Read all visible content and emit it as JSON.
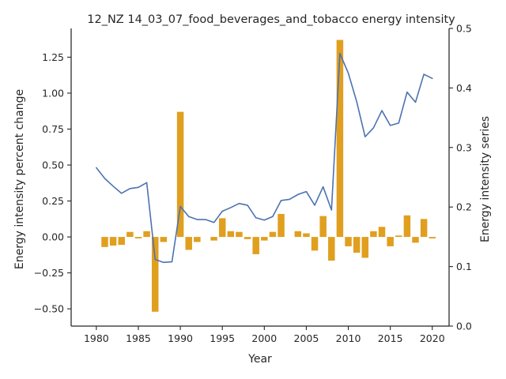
{
  "chart_data": {
    "type": "bar+line",
    "title": "12_NZ 14_03_07_food_beverages_and_tobacco energy intensity",
    "xlabel": "Year",
    "ylabel_left": "Energy intensity percent change",
    "ylabel_right": "Energy intensity series",
    "xlim": [
      1977,
      2022
    ],
    "ylim_left": [
      -0.62,
      1.45
    ],
    "ylim_right": [
      0.0,
      0.5
    ],
    "x_ticks": [
      1980,
      1985,
      1990,
      1995,
      2000,
      2005,
      2010,
      2015,
      2020
    ],
    "y_ticks_left": [
      -0.5,
      -0.25,
      0.0,
      0.25,
      0.5,
      0.75,
      1.0,
      1.25
    ],
    "y_ticks_left_labels": [
      "−0.50",
      "−0.25",
      "0.00",
      "0.25",
      "0.50",
      "0.75",
      "1.00",
      "1.25"
    ],
    "y_ticks_right": [
      0.0,
      0.1,
      0.2,
      0.3,
      0.4,
      0.5
    ],
    "y_ticks_right_labels": [
      "0.0",
      "0.1",
      "0.2",
      "0.3",
      "0.4",
      "0.5"
    ],
    "bar_color": "#e09f1f",
    "line_color": "#4c72b0",
    "grid": false,
    "bars": {
      "axis": "left",
      "x": [
        1981,
        1982,
        1983,
        1984,
        1985,
        1986,
        1987,
        1988,
        1989,
        1990,
        1991,
        1992,
        1993,
        1994,
        1995,
        1996,
        1997,
        1998,
        1999,
        2000,
        2001,
        2002,
        2003,
        2004,
        2005,
        2006,
        2007,
        2008,
        2009,
        2010,
        2011,
        2012,
        2013,
        2014,
        2015,
        2016,
        2017,
        2018,
        2019,
        2020
      ],
      "values": [
        -0.07,
        -0.06,
        -0.055,
        0.035,
        -0.01,
        0.04,
        -0.52,
        -0.035,
        0.0,
        0.87,
        -0.09,
        -0.035,
        0.0,
        -0.025,
        0.13,
        0.04,
        0.035,
        -0.015,
        -0.12,
        -0.025,
        0.035,
        0.16,
        0.0,
        0.04,
        0.025,
        -0.095,
        0.145,
        -0.165,
        1.37,
        -0.065,
        -0.11,
        -0.145,
        0.04,
        0.07,
        -0.065,
        0.01,
        0.15,
        -0.04,
        0.125,
        -0.01
      ]
    },
    "series": [
      {
        "axis": "right",
        "x": [
          1980,
          1981,
          1982,
          1983,
          1984,
          1985,
          1986,
          1987,
          1988,
          1989,
          1990,
          1991,
          1992,
          1993,
          1994,
          1995,
          1996,
          1997,
          1998,
          1999,
          2000,
          2001,
          2002,
          2003,
          2004,
          2005,
          2006,
          2007,
          2008,
          2009,
          2010,
          2011,
          2012,
          2013,
          2014,
          2015,
          2016,
          2017,
          2018,
          2019,
          2020
        ],
        "values": [
          0.266,
          0.248,
          0.235,
          0.223,
          0.231,
          0.233,
          0.241,
          0.112,
          0.107,
          0.108,
          0.201,
          0.184,
          0.179,
          0.179,
          0.174,
          0.193,
          0.199,
          0.206,
          0.203,
          0.182,
          0.178,
          0.184,
          0.211,
          0.213,
          0.221,
          0.226,
          0.203,
          0.234,
          0.195,
          0.458,
          0.425,
          0.377,
          0.318,
          0.333,
          0.362,
          0.337,
          0.341,
          0.393,
          0.376,
          0.423,
          0.416
        ]
      }
    ]
  }
}
